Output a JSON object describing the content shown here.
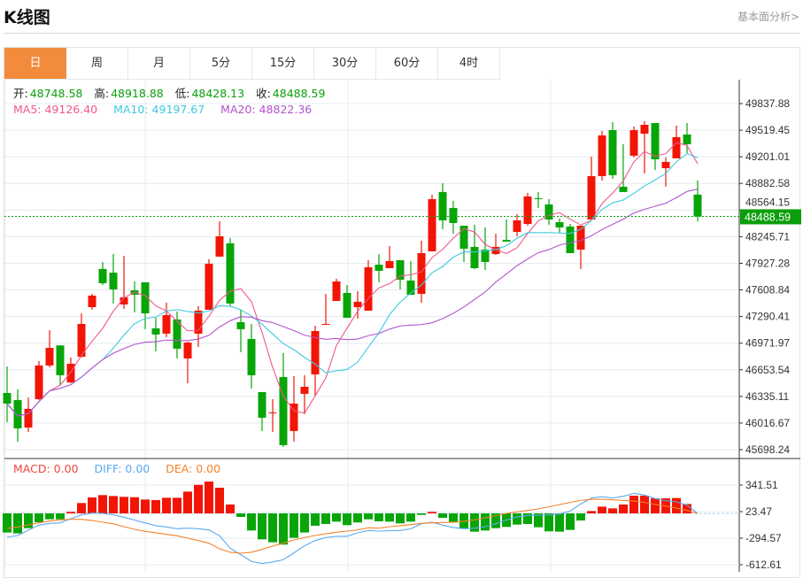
{
  "header": {
    "title": "K线图",
    "fundamental_link": "基本面分析>"
  },
  "tabs": [
    {
      "label": "日",
      "active": true
    },
    {
      "label": "周"
    },
    {
      "label": "月"
    },
    {
      "label": "5分"
    },
    {
      "label": "15分"
    },
    {
      "label": "30分"
    },
    {
      "label": "60分"
    },
    {
      "label": "4时"
    }
  ],
  "ohlc_legend": {
    "open_label": "开:",
    "open": "48748.58",
    "high_label": "高:",
    "high": "48918.88",
    "low_label": "低:",
    "low": "48428.13",
    "close_label": "收:",
    "close": "48488.59"
  },
  "ma_legend": {
    "ma5": "MA5: 49126.40",
    "ma10": "MA10: 49197.67",
    "ma20": "MA20: 48822.36"
  },
  "macd_legend": {
    "macd": "MACD: 0.00",
    "diff": "DIFF: 0.00",
    "dea": "DEA: 0.00"
  },
  "colors": {
    "up": "#f21505",
    "down": "#08a508",
    "ma5": "#f2578c",
    "ma10": "#3ec9e0",
    "ma20": "#b254cc",
    "diff": "#5aaaf2",
    "dea": "#f5822a",
    "tab_active": "#f28c3c",
    "current_price": "#0a9e0a"
  },
  "current_price_label": "48488.59",
  "chart_data": [
    {
      "type": "candlestick",
      "title": "K线图 (日)",
      "y_ticks": [
        "49837.88",
        "49519.45",
        "49201.01",
        "48882.58",
        "48564.15",
        "48245.71",
        "47927.28",
        "47608.84",
        "47290.41",
        "46971.97",
        "46653.54",
        "46335.11",
        "46016.67",
        "45698.24"
      ],
      "ylim": [
        45698.24,
        49837.88
      ],
      "ohlc": [
        [
          46376,
          46694,
          46027,
          46249
        ],
        [
          46292,
          46419,
          45794,
          45953
        ],
        [
          45963,
          46323,
          45910,
          46186
        ],
        [
          46302,
          46757,
          46290,
          46705
        ],
        [
          46705,
          47128,
          46683,
          46916
        ],
        [
          46945,
          46945,
          46472,
          46588
        ],
        [
          46503,
          46800,
          46492,
          46726
        ],
        [
          46810,
          47329,
          46800,
          47202
        ],
        [
          47403,
          47562,
          47371,
          47541
        ],
        [
          47859,
          47943,
          47668,
          47689
        ],
        [
          47816,
          48038,
          47446,
          47615
        ],
        [
          47435,
          48017,
          47382,
          47520
        ],
        [
          47604,
          47710,
          47340,
          47551
        ],
        [
          47700,
          47700,
          47139,
          47329
        ],
        [
          47149,
          47276,
          46874,
          47075
        ],
        [
          47086,
          47456,
          47043,
          47308
        ],
        [
          47255,
          47350,
          46789,
          46906
        ],
        [
          46789,
          46990,
          46492,
          46980
        ],
        [
          47086,
          47414,
          46927,
          47361
        ],
        [
          47371,
          47975,
          47371,
          47922
        ],
        [
          48007,
          48430,
          48007,
          48250
        ],
        [
          48166,
          48229,
          47414,
          47446
        ],
        [
          47223,
          47371,
          46863,
          47139
        ],
        [
          47022,
          47202,
          46429,
          46588
        ],
        [
          46387,
          46387,
          45921,
          46080
        ],
        [
          46133,
          46302,
          45910,
          46144
        ],
        [
          46567,
          46853,
          45730,
          45752
        ],
        [
          45921,
          46577,
          45794,
          46249
        ],
        [
          46366,
          46588,
          46122,
          46450
        ],
        [
          46598,
          47181,
          46345,
          47117
        ],
        [
          47192,
          47562,
          47192,
          47202
        ],
        [
          47477,
          47742,
          47477,
          47710
        ],
        [
          47573,
          47668,
          47276,
          47276
        ],
        [
          47403,
          47594,
          47266,
          47467
        ],
        [
          47361,
          47964,
          47361,
          47880
        ],
        [
          47911,
          48038,
          47700,
          47837
        ],
        [
          47869,
          48134,
          47869,
          47954
        ],
        [
          47964,
          47964,
          47615,
          47731
        ],
        [
          47721,
          47954,
          47551,
          47551
        ],
        [
          47562,
          48197,
          47456,
          48049
        ],
        [
          48070,
          48748,
          48070,
          48695
        ],
        [
          48780,
          48885,
          48335,
          48441
        ],
        [
          48589,
          48674,
          48282,
          48409
        ],
        [
          48377,
          48377,
          47943,
          48102
        ],
        [
          48123,
          48388,
          47859,
          47869
        ],
        [
          48091,
          48356,
          47848,
          47943
        ],
        [
          48038,
          48282,
          48028,
          48123
        ],
        [
          48208,
          48451,
          48187,
          48187
        ],
        [
          48303,
          48515,
          48250,
          48441
        ],
        [
          48398,
          48769,
          48377,
          48727
        ],
        [
          48705,
          48780,
          48589,
          48695
        ],
        [
          48631,
          48695,
          48388,
          48451
        ],
        [
          48420,
          48462,
          48293,
          48356
        ],
        [
          48367,
          48398,
          48049,
          48049
        ],
        [
          48091,
          48377,
          47859,
          48377
        ],
        [
          48451,
          49203,
          48451,
          48970
        ],
        [
          48970,
          49510,
          48917,
          49457
        ],
        [
          49520,
          49616,
          48938,
          48981
        ],
        [
          48843,
          49351,
          48780,
          48780
        ],
        [
          49214,
          49563,
          49193,
          49520
        ],
        [
          49478,
          49627,
          49002,
          49584
        ],
        [
          49605,
          49605,
          49044,
          49171
        ],
        [
          49065,
          49193,
          48843,
          49140
        ],
        [
          49182,
          49574,
          49182,
          49436
        ],
        [
          49468,
          49605,
          49245,
          49351
        ],
        [
          48748.58,
          48918.88,
          48428.13,
          48488.59
        ]
      ]
    },
    {
      "type": "bar+line",
      "title": "MACD",
      "y_ticks": [
        "341.51",
        "23.47",
        "-294.57",
        "-612.61"
      ],
      "macd": [
        -229,
        -240,
        -177,
        -106,
        -71,
        -71,
        18,
        124,
        191,
        219,
        208,
        198,
        194,
        166,
        159,
        187,
        187,
        261,
        342,
        381,
        307,
        106,
        -42,
        -205,
        -311,
        -346,
        -374,
        -293,
        -229,
        -148,
        -127,
        -99,
        -141,
        -109,
        -71,
        -95,
        -99,
        -120,
        -99,
        -18,
        18,
        -53,
        -109,
        -184,
        -219,
        -205,
        -177,
        -162,
        -134,
        -127,
        -166,
        -215,
        -219,
        -198,
        -85,
        28,
        81,
        60,
        106,
        212,
        212,
        180,
        180,
        184,
        113,
        0
      ],
      "diff": [
        -286,
        -265,
        -201,
        -141,
        -120,
        -113,
        -64,
        -18,
        4,
        0,
        -18,
        -46,
        -81,
        -113,
        -148,
        -162,
        -184,
        -177,
        -184,
        -198,
        -268,
        -417,
        -494,
        -575,
        -600,
        -582,
        -554,
        -473,
        -388,
        -325,
        -289,
        -275,
        -275,
        -233,
        -205,
        -212,
        -208,
        -205,
        -184,
        -124,
        -106,
        -141,
        -169,
        -184,
        -177,
        -159,
        -124,
        -78,
        -42,
        -25,
        -21,
        -18,
        -7,
        28,
        113,
        184,
        201,
        184,
        205,
        240,
        219,
        177,
        152,
        138,
        99,
        0
      ],
      "dea": [
        -180,
        -162,
        -138,
        -113,
        -92,
        -78,
        -71,
        -71,
        -85,
        -106,
        -124,
        -159,
        -191,
        -215,
        -233,
        -251,
        -268,
        -297,
        -325,
        -357,
        -424,
        -466,
        -477,
        -466,
        -431,
        -392,
        -357,
        -318,
        -289,
        -265,
        -244,
        -226,
        -212,
        -198,
        -173,
        -177,
        -159,
        -148,
        -134,
        -120,
        -113,
        -109,
        -106,
        -95,
        -78,
        -53,
        -28,
        0,
        18,
        35,
        53,
        78,
        106,
        131,
        155,
        169,
        169,
        162,
        155,
        148,
        131,
        106,
        88,
        64,
        35,
        0
      ]
    }
  ]
}
